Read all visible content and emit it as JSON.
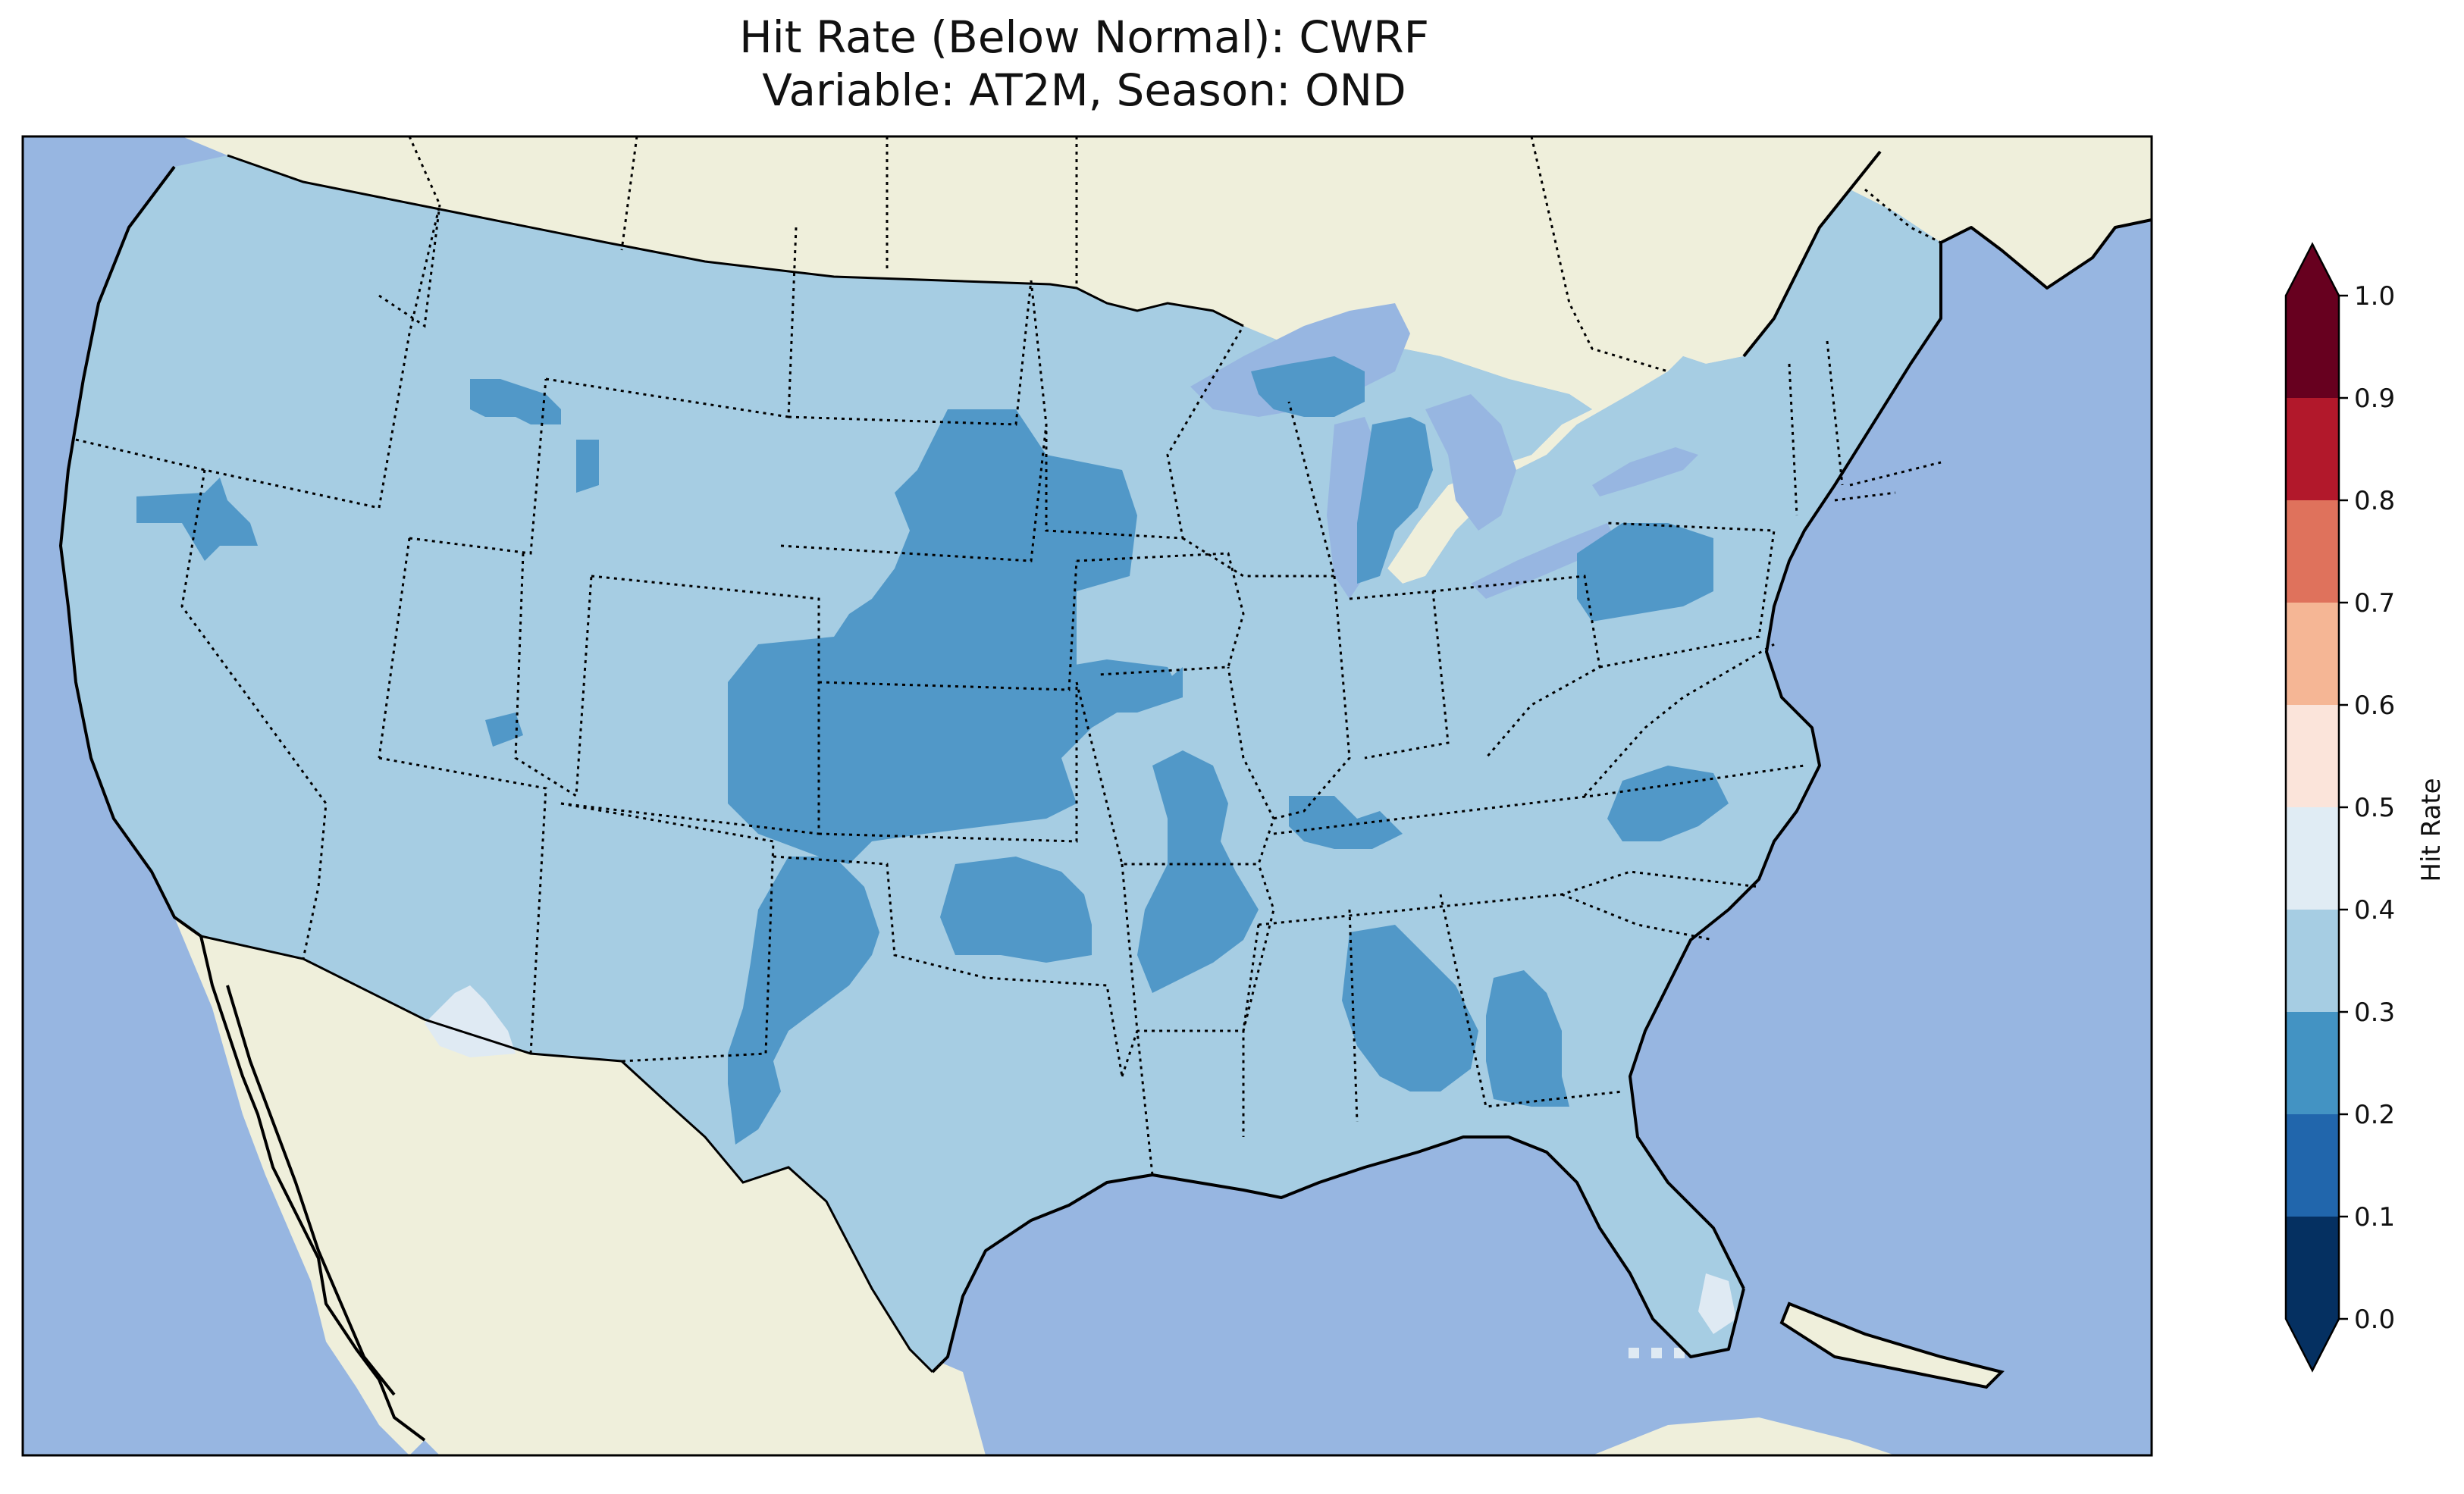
{
  "title": {
    "line1": "Hit Rate (Below Normal): CWRF",
    "line2": "Variable: AT2M, Season: OND"
  },
  "map": {
    "ocean_color": "#97b6e1",
    "land_color": "#efefdb",
    "base_category_color": "#a6cde3",
    "low_category_color": "#5198c8",
    "high_category_color": "#dfeaf3"
  },
  "colorbar": {
    "label": "Hit Rate",
    "ticks": [
      "0.0",
      "0.1",
      "0.2",
      "0.3",
      "0.4",
      "0.5",
      "0.6",
      "0.7",
      "0.8",
      "0.9",
      "1.0"
    ],
    "under_color": "#053061",
    "over_color": "#67001f",
    "bins": [
      {
        "from": 0.0,
        "to": 0.1,
        "color": "#053061"
      },
      {
        "from": 0.1,
        "to": 0.2,
        "color": "#2166ac"
      },
      {
        "from": 0.2,
        "to": 0.3,
        "color": "#4393c3"
      },
      {
        "from": 0.3,
        "to": 0.4,
        "color": "#a6cde3"
      },
      {
        "from": 0.4,
        "to": 0.5,
        "color": "#e0ecf4"
      },
      {
        "from": 0.5,
        "to": 0.6,
        "color": "#fbe4da"
      },
      {
        "from": 0.6,
        "to": 0.7,
        "color": "#f5b695"
      },
      {
        "from": 0.7,
        "to": 0.8,
        "color": "#df725c"
      },
      {
        "from": 0.8,
        "to": 0.9,
        "color": "#b2182b"
      },
      {
        "from": 0.9,
        "to": 1.0,
        "color": "#67001f"
      }
    ]
  }
}
